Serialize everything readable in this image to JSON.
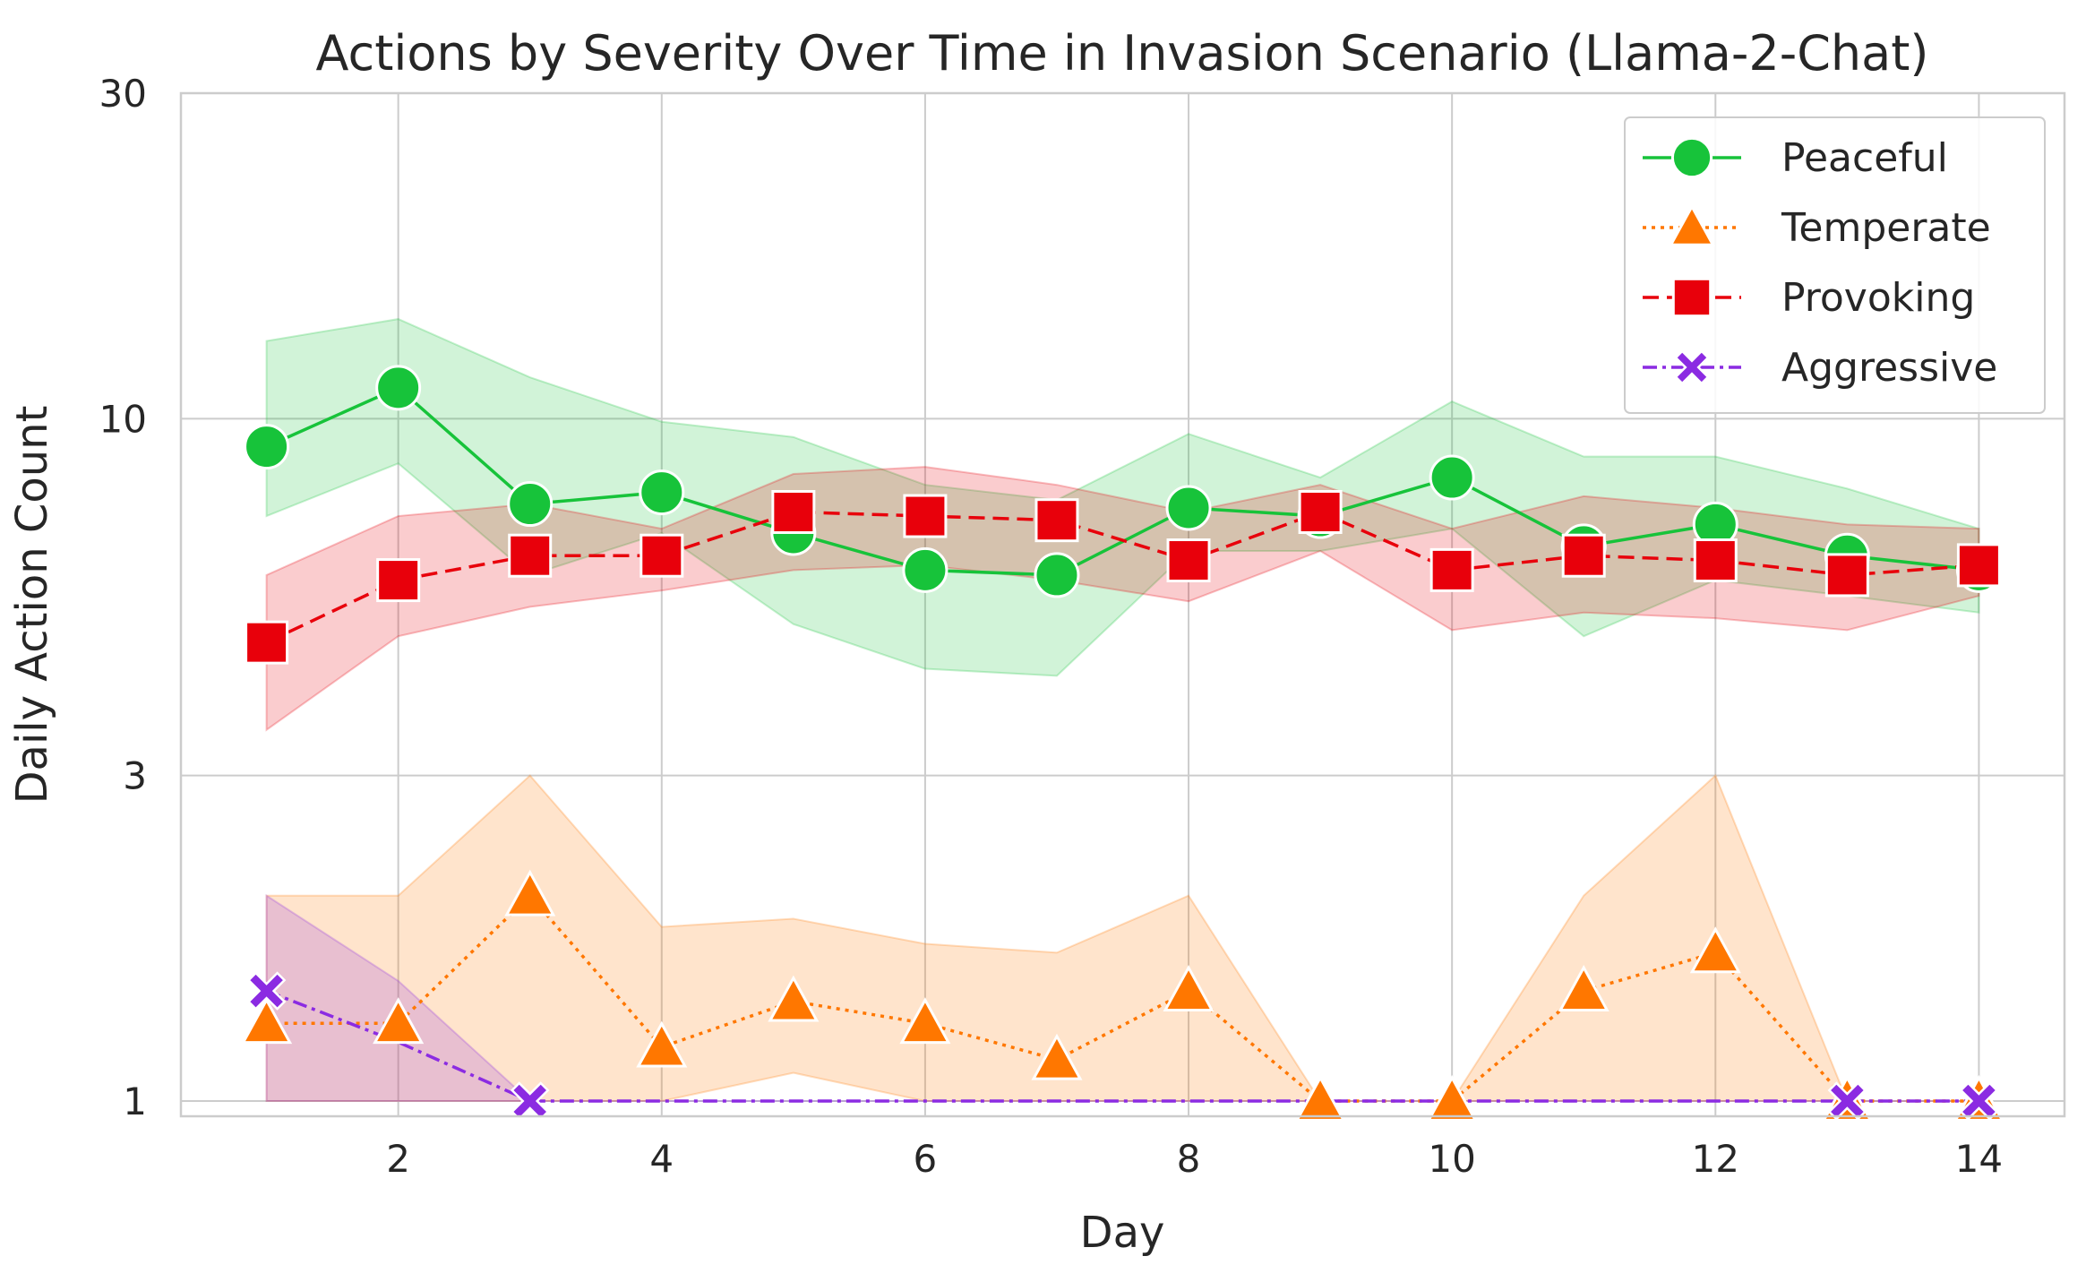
{
  "chart_data": {
    "type": "line",
    "title": "Actions by Severity Over Time in Invasion Scenario (Llama-2-Chat)",
    "xlabel": "Day",
    "ylabel": "Daily Action Count",
    "y_scale": "log",
    "xlim": [
      0.35,
      14.65
    ],
    "ylim": [
      0.95,
      30
    ],
    "x_ticks": [
      2,
      4,
      6,
      8,
      10,
      12,
      14
    ],
    "y_ticks": [
      1,
      3,
      10,
      30
    ],
    "grid": true,
    "legend_position": "top-right",
    "x": [
      1,
      2,
      3,
      4,
      5,
      6,
      7,
      8,
      9,
      10,
      11,
      12,
      13,
      14
    ],
    "series": [
      {
        "name": "Peaceful",
        "color": "#17c33a",
        "line_style": "solid",
        "marker": "circle",
        "values": [
          9.1,
          11.1,
          7.5,
          7.8,
          6.8,
          6.0,
          5.9,
          7.4,
          7.2,
          8.2,
          6.5,
          7.0,
          6.3,
          6.0
        ],
        "ci_low": [
          7.2,
          8.6,
          5.9,
          6.8,
          5.0,
          4.3,
          4.2,
          6.4,
          6.4,
          6.9,
          4.8,
          5.8,
          5.5,
          5.2
        ],
        "ci_high": [
          13.0,
          14.0,
          11.5,
          9.9,
          9.4,
          8.0,
          7.6,
          9.5,
          8.2,
          10.6,
          8.8,
          8.8,
          7.9,
          6.9
        ]
      },
      {
        "name": "Temperate",
        "color": "#ff7700",
        "line_style": "dotted",
        "marker": "triangle",
        "values": [
          1.3,
          1.3,
          2.0,
          1.2,
          1.4,
          1.3,
          1.15,
          1.45,
          1.0,
          1.0,
          1.45,
          1.65,
          1.0,
          1.0
        ],
        "ci_low": [
          1.0,
          1.0,
          1.0,
          1.0,
          1.1,
          1.0,
          1.0,
          1.0,
          1.0,
          1.0,
          1.0,
          1.0,
          1.0,
          1.0
        ],
        "ci_high": [
          2.0,
          2.0,
          3.0,
          1.8,
          1.85,
          1.7,
          1.65,
          2.0,
          1.0,
          1.0,
          2.0,
          3.0,
          1.0,
          1.0
        ]
      },
      {
        "name": "Provoking",
        "color": "#e8000b",
        "line_style": "dashed",
        "marker": "square",
        "values": [
          4.7,
          5.8,
          6.3,
          6.3,
          7.3,
          7.2,
          7.1,
          6.2,
          7.3,
          6.0,
          6.3,
          6.2,
          5.9,
          6.1
        ],
        "ci_low": [
          3.5,
          4.8,
          5.3,
          5.6,
          6.0,
          6.1,
          5.8,
          5.4,
          6.4,
          4.9,
          5.2,
          5.1,
          4.9,
          5.5
        ],
        "ci_high": [
          5.9,
          7.2,
          7.5,
          6.9,
          8.3,
          8.5,
          8.0,
          7.3,
          8.0,
          6.9,
          7.7,
          7.4,
          7.0,
          6.9
        ]
      },
      {
        "name": "Aggressive",
        "color": "#8b2be2",
        "line_style": "dashdot",
        "marker": "x",
        "values": [
          1.45,
          null,
          1.0,
          null,
          null,
          null,
          null,
          null,
          null,
          null,
          null,
          null,
          1.0,
          1.0
        ],
        "line_values": [
          1.45,
          1.22,
          1.0,
          1.0,
          1.0,
          1.0,
          1.0,
          1.0,
          1.0,
          1.0,
          1.0,
          1.0,
          1.0,
          1.0
        ],
        "ci_low": [
          1.0,
          1.0,
          1.0,
          1.0,
          1.0,
          1.0,
          1.0,
          1.0,
          1.0,
          1.0,
          1.0,
          1.0,
          1.0,
          1.0
        ],
        "ci_high": [
          2.0,
          1.5,
          1.0,
          1.0,
          1.0,
          1.0,
          1.0,
          1.0,
          1.0,
          1.0,
          1.0,
          1.0,
          1.0,
          1.0
        ]
      }
    ]
  }
}
